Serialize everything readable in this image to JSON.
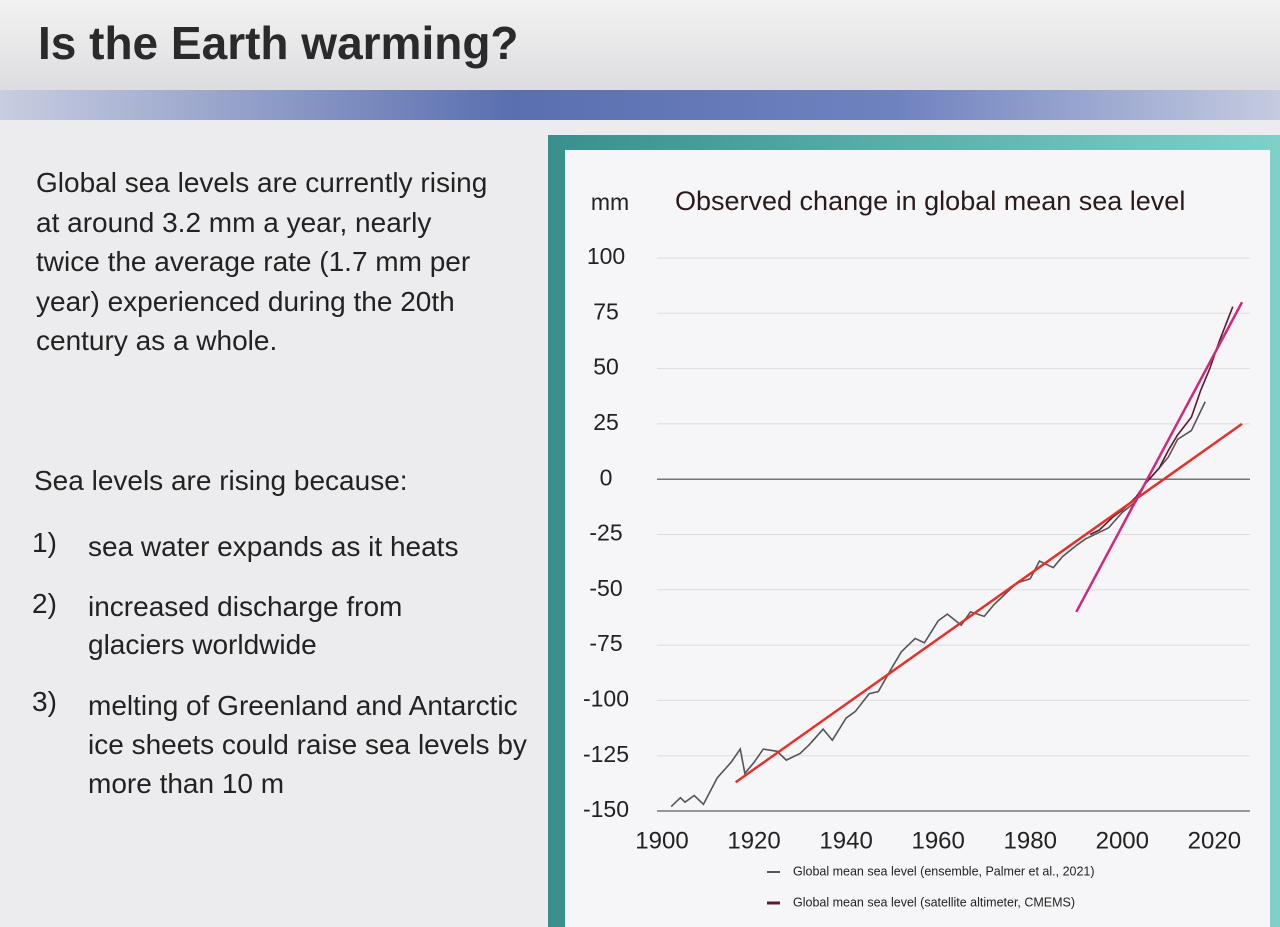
{
  "slide": {
    "title": "Is the Earth warming?",
    "intro": "Global sea levels are currently rising at around 3.2 mm a year, nearly twice the average rate (1.7 mm per year) experienced during the 20th century as a whole.",
    "list_heading": "Sea levels are rising because:",
    "reasons": [
      {
        "number": "1)",
        "text": "sea water expands as it heats"
      },
      {
        "number": "2)",
        "text": "increased discharge from glaciers worldwide"
      },
      {
        "number": "3)",
        "text": "melting of Greenland and Antarctic ice sheets could raise sea levels by more than 10 m"
      }
    ]
  },
  "chart_data": {
    "type": "line",
    "title": "Observed change in global mean sea level",
    "y_unit": "mm",
    "xlim": [
      1900,
      2026
    ],
    "xticks": [
      1900,
      1920,
      1940,
      1960,
      1980,
      2000,
      2020
    ],
    "ylim": [
      -150,
      100
    ],
    "yticks": [
      -150,
      -125,
      -100,
      -75,
      -50,
      -25,
      0,
      25,
      50,
      75,
      100
    ],
    "grid": true,
    "series": [
      {
        "name": "Global mean sea level (ensemble, Palmer et al., 2021)",
        "color": "#555555",
        "x": [
          1902,
          1904,
          1905,
          1907,
          1909,
          1910,
          1912,
          1915,
          1917,
          1918,
          1920,
          1922,
          1925,
          1927,
          1930,
          1932,
          1935,
          1937,
          1940,
          1942,
          1945,
          1947,
          1950,
          1952,
          1955,
          1957,
          1960,
          1962,
          1965,
          1967,
          1970,
          1972,
          1975,
          1977,
          1980,
          1982,
          1985,
          1987,
          1990,
          1992,
          1995,
          1997,
          2000,
          2003,
          2005,
          2008,
          2010,
          2012,
          2015,
          2018
        ],
        "values": [
          -148,
          -144,
          -146,
          -143,
          -147,
          -143,
          -135,
          -128,
          -122,
          -133,
          -128,
          -122,
          -123,
          -127,
          -124,
          -120,
          -113,
          -118,
          -108,
          -105,
          -97,
          -96,
          -85,
          -78,
          -72,
          -74,
          -64,
          -61,
          -66,
          -60,
          -62,
          -57,
          -51,
          -47,
          -45,
          -37,
          -40,
          -35,
          -30,
          -27,
          -24,
          -22,
          -15,
          -10,
          -2,
          5,
          10,
          18,
          22,
          35
        ]
      },
      {
        "name": "Global mean sea level (satellite altimeter, CMEMS)",
        "color": "#5e1a2c",
        "x": [
          1993,
          1995,
          1998,
          2000,
          2003,
          2005,
          2008,
          2010,
          2012,
          2015,
          2017,
          2019,
          2021,
          2024
        ],
        "values": [
          -25,
          -23,
          -17,
          -14,
          -8,
          -2,
          5,
          13,
          20,
          28,
          40,
          50,
          62,
          78
        ]
      }
    ],
    "trend_lines": [
      {
        "color": "#e8302a",
        "x": [
          1916,
          2026
        ],
        "values": [
          -137,
          25
        ]
      },
      {
        "color": "#d0287a",
        "x": [
          1990,
          2026
        ],
        "values": [
          -60,
          80
        ]
      }
    ]
  }
}
